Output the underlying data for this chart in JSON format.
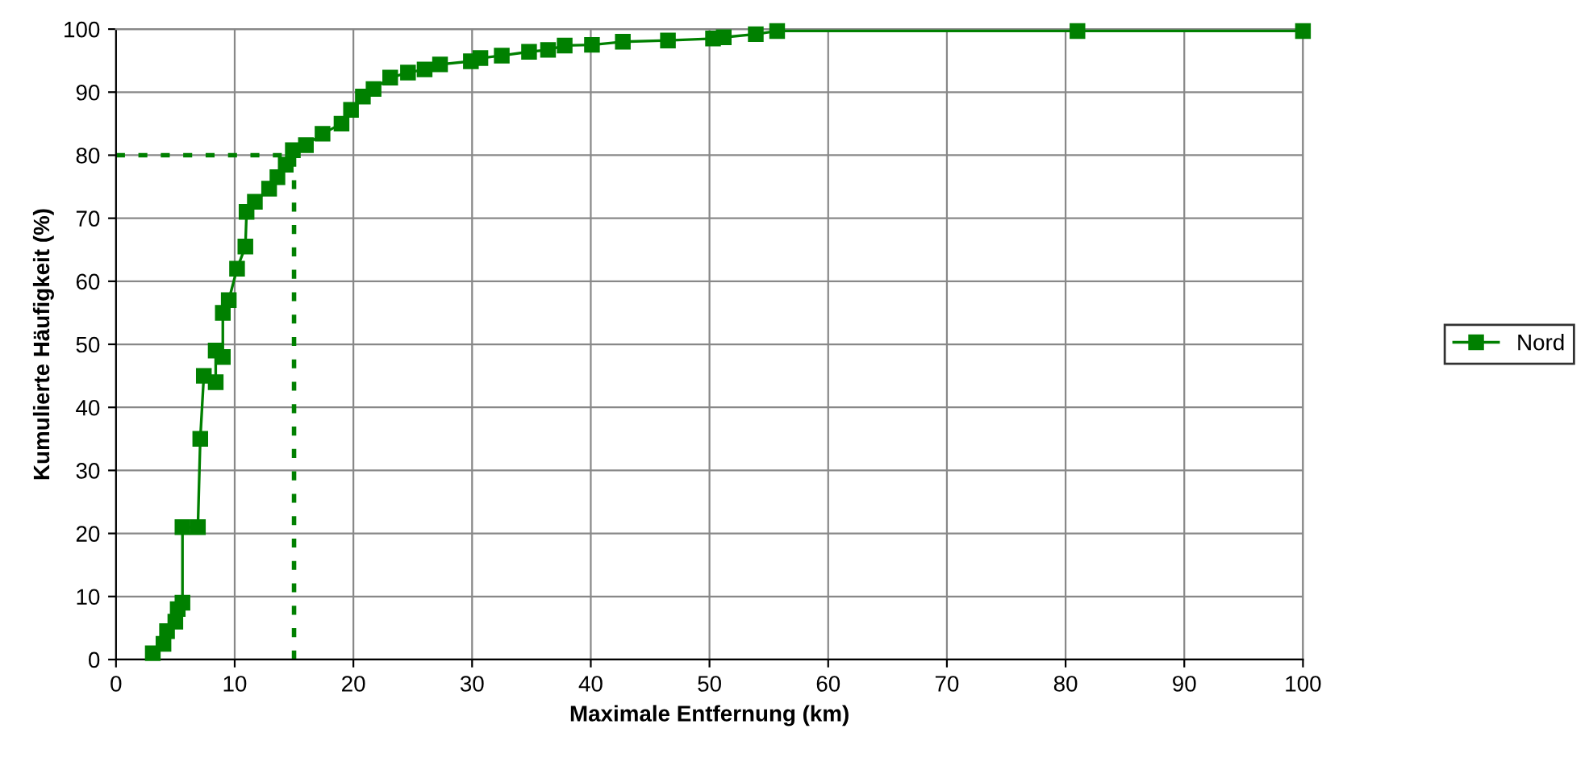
{
  "chart_data": {
    "type": "line",
    "xlabel": "Maximale Entfernung (km)",
    "ylabel": "Kumulierte Häufigkeit (%)",
    "xlim": [
      0,
      100
    ],
    "xticks": [
      0,
      10,
      20,
      30,
      40,
      50,
      60,
      70,
      80,
      90,
      100
    ],
    "ylim": [
      0,
      100
    ],
    "yticks": [
      0,
      10,
      20,
      30,
      40,
      50,
      60,
      70,
      80,
      90,
      100
    ],
    "grid": true,
    "legend": "right",
    "marker": "square",
    "line_style": "solid",
    "ref_lines": [
      {
        "axis": "y",
        "value": 80,
        "color": "#008000",
        "line_style": "dotted"
      },
      {
        "axis": "x",
        "value": 15,
        "color": "#008000",
        "line_style": "dotted"
      }
    ],
    "series": [
      {
        "name": "Nord",
        "color": "#008000",
        "x": [
          3.1,
          4.0,
          4.3,
          5.0,
          5.2,
          5.6,
          5.6,
          6.9,
          7.1,
          7.4,
          8.4,
          8.4,
          9.0,
          9.0,
          9.5,
          10.2,
          10.9,
          11.0,
          11.7,
          12.9,
          13.6,
          14.3,
          14.9,
          16.0,
          17.4,
          19.0,
          19.8,
          20.8,
          21.7,
          23.1,
          24.6,
          26.0,
          27.3,
          29.9,
          30.7,
          32.5,
          34.8,
          36.4,
          37.8,
          40.1,
          42.7,
          46.5,
          50.3,
          51.2,
          53.9,
          55.7,
          81.0,
          100
        ],
        "values": [
          1,
          2.5,
          4.5,
          6,
          8,
          9,
          21,
          21,
          35,
          45,
          44,
          49,
          48,
          55,
          57,
          62,
          65.5,
          71,
          72.6,
          74.7,
          76.5,
          78.5,
          80.8,
          81.6,
          83.4,
          85,
          87.2,
          89.3,
          90.5,
          92.3,
          93.1,
          93.6,
          94.4,
          94.9,
          95.4,
          95.8,
          96.4,
          96.7,
          97.4,
          97.5,
          98,
          98.2,
          98.5,
          98.7,
          99.2,
          99.7,
          99.7,
          99.7
        ]
      }
    ]
  }
}
